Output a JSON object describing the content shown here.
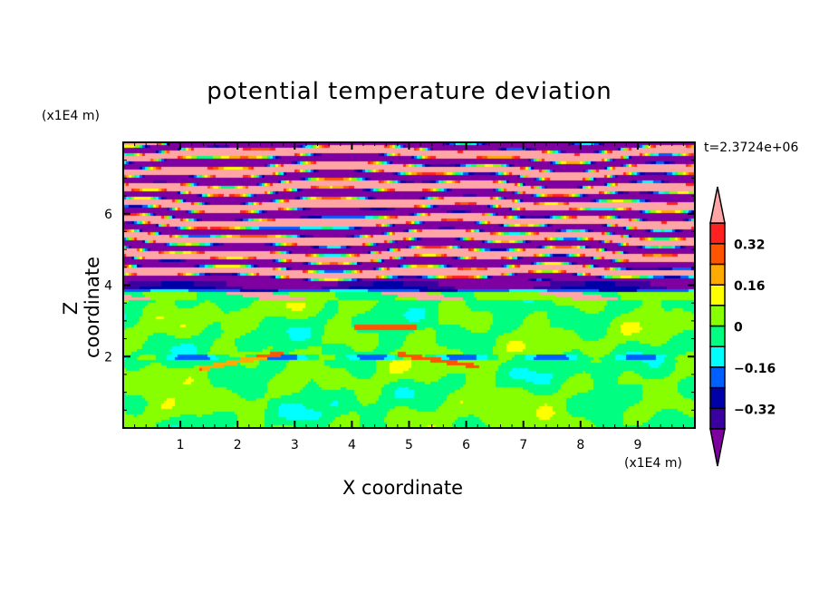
{
  "chart_data": {
    "type": "heatmap",
    "title": "potential temperature deviation",
    "xlabel": "X coordinate",
    "ylabel": "Z coordinate",
    "x_unit": "(x1E4 m)",
    "y_unit": "(x1E4 m)",
    "xlim": [
      0,
      10
    ],
    "ylim": [
      0,
      8
    ],
    "x_ticks": [
      "1",
      "2",
      "3",
      "4",
      "5",
      "6",
      "7",
      "8",
      "9"
    ],
    "y_ticks": [
      "2",
      "4",
      "6"
    ],
    "time_label": "t=2.3724e+06",
    "colorbar": {
      "levels": [
        -0.4,
        -0.32,
        -0.24,
        -0.16,
        -0.08,
        0,
        0.08,
        0.16,
        0.24,
        0.32,
        0.4
      ],
      "labels": [
        "0.32",
        "0.16",
        "0",
        "-0.16",
        "-0.32"
      ],
      "label_values": [
        0.32,
        0.16,
        0,
        -0.16,
        -0.32
      ],
      "colors": [
        "#7f00a0",
        "#3a00a0",
        "#0000a8",
        "#0060ff",
        "#00ffff",
        "#00ff80",
        "#88ff00",
        "#ffff00",
        "#ffaa00",
        "#ff5500",
        "#ff2020",
        "#ffa5a5"
      ],
      "extend": "both"
    }
  }
}
